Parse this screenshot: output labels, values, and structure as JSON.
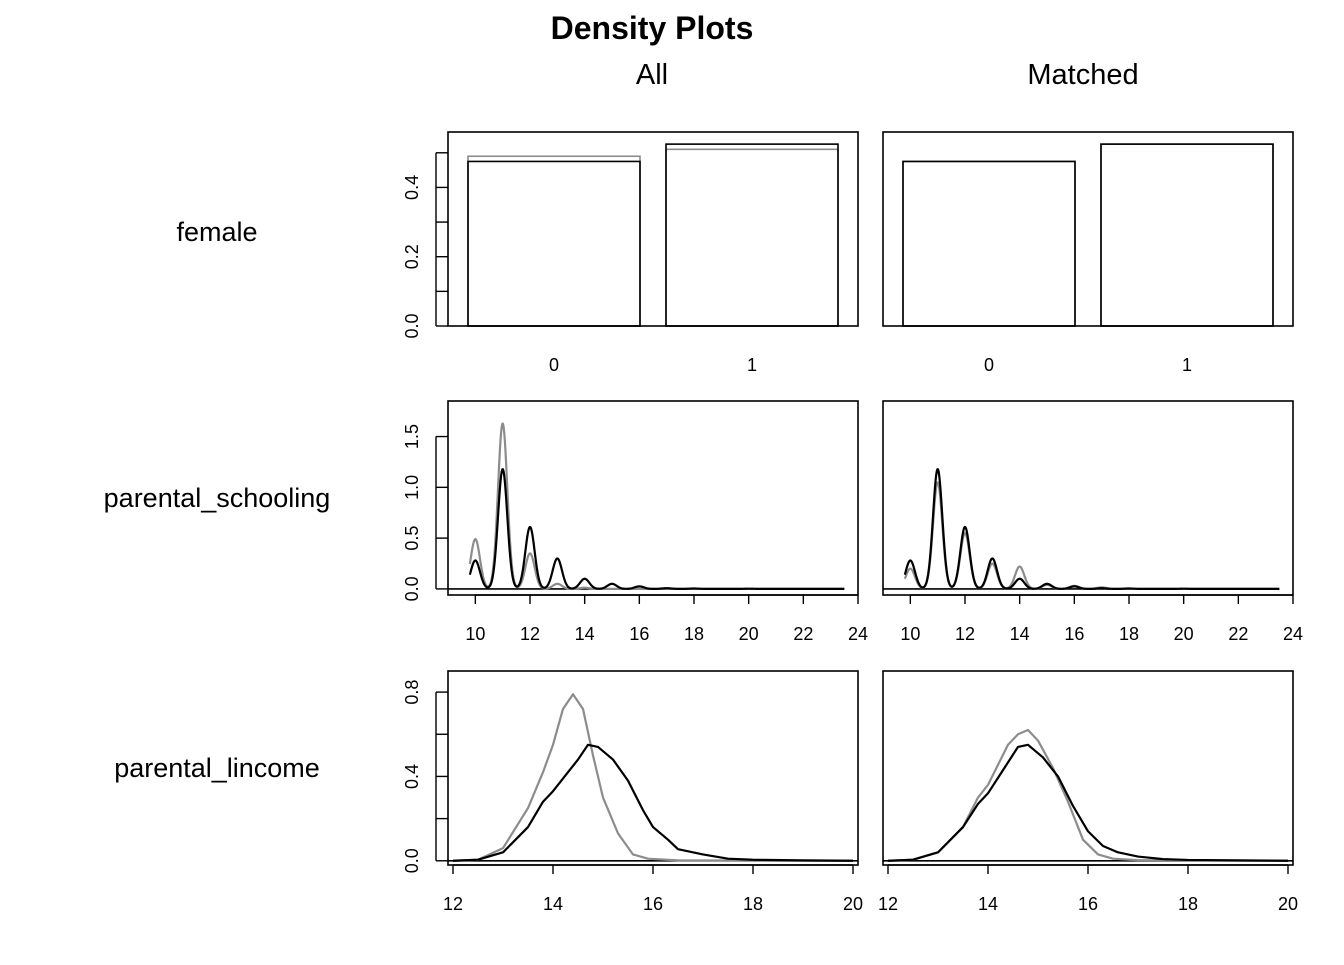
{
  "chart_data": {
    "type": "density-grid",
    "title": "Density Plots",
    "columns": [
      "All",
      "Matched"
    ],
    "colors": {
      "treated": "#000000",
      "control": "#8c8c8c"
    },
    "panels": [
      {
        "variable": "female",
        "kind": "bar",
        "categories": [
          "0",
          "1"
        ],
        "ylim": [
          0,
          0.56
        ],
        "yticks": [
          0.0,
          0.2,
          0.4
        ],
        "ytick_labels": [
          "0.0",
          "0.2",
          "0.4"
        ],
        "ytick_minor": [
          0.1,
          0.3,
          0.5
        ],
        "all": {
          "treated": [
            0.475,
            0.525
          ],
          "control": [
            0.49,
            0.51
          ]
        },
        "matched": {
          "treated": [
            0.475,
            0.525
          ],
          "control": [
            0.475,
            0.525
          ]
        }
      },
      {
        "variable": "parental_schooling",
        "kind": "density",
        "xlim": [
          9,
          24
        ],
        "xticks": [
          10,
          12,
          14,
          16,
          18,
          20,
          22,
          24
        ],
        "ylim": [
          -0.06,
          1.85
        ],
        "yticks": [
          0.0,
          0.5,
          1.0,
          1.5
        ],
        "ytick_labels": [
          "0.0",
          "0.5",
          "1.0",
          "1.5"
        ],
        "x_end": 23.5,
        "peak_width": 0.17,
        "all": {
          "treated": [
            [
              10,
              0.28
            ],
            [
              11,
              1.18
            ],
            [
              12,
              0.61
            ],
            [
              13,
              0.3
            ],
            [
              14,
              0.1
            ],
            [
              15,
              0.05
            ],
            [
              16,
              0.025
            ],
            [
              17,
              0.007
            ],
            [
              18,
              0.004
            ],
            [
              20,
              0.002
            ]
          ],
          "control": [
            [
              10,
              0.49
            ],
            [
              11,
              1.63
            ],
            [
              12,
              0.35
            ],
            [
              13,
              0.05
            ],
            [
              14,
              0.012
            ]
          ]
        },
        "matched": {
          "treated": [
            [
              10,
              0.28
            ],
            [
              11,
              1.18
            ],
            [
              12,
              0.61
            ],
            [
              13,
              0.3
            ],
            [
              14,
              0.1
            ],
            [
              15,
              0.05
            ],
            [
              16,
              0.025
            ],
            [
              17,
              0.007
            ],
            [
              18,
              0.004
            ],
            [
              20,
              0.002
            ]
          ],
          "control": [
            [
              10,
              0.2
            ],
            [
              11,
              1.05
            ],
            [
              12,
              0.55
            ],
            [
              13,
              0.25
            ],
            [
              14,
              0.22
            ],
            [
              15,
              0.04
            ],
            [
              16,
              0.03
            ],
            [
              17,
              0.015
            ]
          ]
        }
      },
      {
        "variable": "parental_lincome",
        "kind": "density",
        "xlim": [
          11.9,
          20.1
        ],
        "xticks": [
          12,
          14,
          16,
          18,
          20
        ],
        "ylim": [
          -0.02,
          0.9
        ],
        "yticks": [
          0.0,
          0.4,
          0.8
        ],
        "ytick_labels": [
          "0.0",
          "0.4",
          "0.8"
        ],
        "ytick_minor": [
          0.2,
          0.6
        ],
        "x_end": 20.1,
        "all": {
          "treated": [
            [
              12,
              0
            ],
            [
              12.5,
              0.005
            ],
            [
              13,
              0.04
            ],
            [
              13.5,
              0.16
            ],
            [
              13.8,
              0.28
            ],
            [
              14,
              0.33
            ],
            [
              14.3,
              0.42
            ],
            [
              14.5,
              0.48
            ],
            [
              14.7,
              0.55
            ],
            [
              14.9,
              0.54
            ],
            [
              15.2,
              0.48
            ],
            [
              15.5,
              0.38
            ],
            [
              15.8,
              0.24
            ],
            [
              16,
              0.16
            ],
            [
              16.3,
              0.1
            ],
            [
              16.5,
              0.055
            ],
            [
              17,
              0.03
            ],
            [
              17.5,
              0.01
            ],
            [
              18,
              0.005
            ],
            [
              19,
              0.002
            ],
            [
              20,
              0
            ]
          ],
          "control": [
            [
              12,
              0
            ],
            [
              12.5,
              0.005
            ],
            [
              13,
              0.06
            ],
            [
              13.5,
              0.25
            ],
            [
              13.8,
              0.42
            ],
            [
              14,
              0.55
            ],
            [
              14.2,
              0.72
            ],
            [
              14.4,
              0.79
            ],
            [
              14.6,
              0.72
            ],
            [
              14.8,
              0.5
            ],
            [
              15,
              0.3
            ],
            [
              15.3,
              0.13
            ],
            [
              15.6,
              0.03
            ],
            [
              15.9,
              0.01
            ],
            [
              16.5,
              0.002
            ],
            [
              20,
              0
            ]
          ]
        },
        "matched": {
          "treated": [
            [
              12,
              0
            ],
            [
              12.5,
              0.005
            ],
            [
              13,
              0.04
            ],
            [
              13.5,
              0.16
            ],
            [
              13.8,
              0.27
            ],
            [
              14,
              0.32
            ],
            [
              14.3,
              0.43
            ],
            [
              14.6,
              0.54
            ],
            [
              14.8,
              0.55
            ],
            [
              15.1,
              0.49
            ],
            [
              15.4,
              0.4
            ],
            [
              15.7,
              0.26
            ],
            [
              16,
              0.14
            ],
            [
              16.3,
              0.07
            ],
            [
              16.6,
              0.04
            ],
            [
              17,
              0.02
            ],
            [
              17.5,
              0.008
            ],
            [
              18,
              0.004
            ],
            [
              19,
              0.002
            ],
            [
              20,
              0
            ]
          ],
          "control": [
            [
              12,
              0
            ],
            [
              12.5,
              0.005
            ],
            [
              13,
              0.04
            ],
            [
              13.5,
              0.16
            ],
            [
              13.8,
              0.3
            ],
            [
              14,
              0.36
            ],
            [
              14.4,
              0.55
            ],
            [
              14.6,
              0.6
            ],
            [
              14.8,
              0.62
            ],
            [
              15,
              0.57
            ],
            [
              15.3,
              0.44
            ],
            [
              15.6,
              0.28
            ],
            [
              15.9,
              0.1
            ],
            [
              16.2,
              0.03
            ],
            [
              16.5,
              0.01
            ],
            [
              17,
              0.003
            ],
            [
              20,
              0
            ]
          ]
        }
      }
    ]
  }
}
